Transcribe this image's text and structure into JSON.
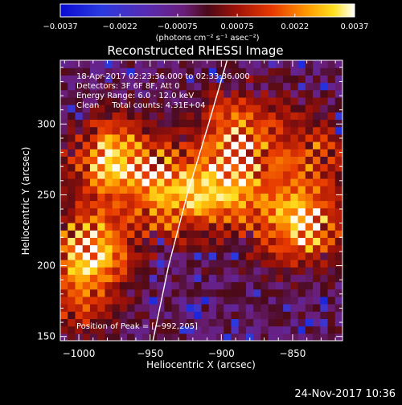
{
  "chart_data": {
    "type": "heatmap",
    "title": "Reconstructed RHESSI Image",
    "xlabel": "Heliocentric X (arcsec)",
    "ylabel": "Heliocentric Y (arcsec)",
    "xlim": [
      -1013,
      -815
    ],
    "ylim": [
      147,
      345
    ],
    "xticks": [
      -1000,
      -950,
      -900,
      -850
    ],
    "xtick_labels": [
      "−1000",
      "−950",
      "−900",
      "−850"
    ],
    "yticks": [
      150,
      200,
      250,
      300
    ],
    "ytick_labels": [
      "150",
      "200",
      "250",
      "300"
    ],
    "colorbar": {
      "min": -0.0037,
      "max": 0.0037,
      "ticks": [
        -0.0037,
        -0.0022,
        -0.00075,
        0.00075,
        0.0022,
        0.0037
      ],
      "tick_labels": [
        "−0.0037",
        "−0.0022",
        "−0.00075",
        "0.00075",
        "0.0022",
        "0.0037"
      ],
      "units_label": "(photons cm⁻² s⁻¹ asec⁻²)",
      "colormap": "blue-purple-red-yellow-white"
    },
    "annotations": [
      "18-Apr-2017 02:23:36.000 to 02:33:36.000",
      "Detectors: 3F 6F 8F, Att 0",
      "Energy Range: 6.0 - 12.0 keV",
      "Clean     Total counts: 4.31E+04"
    ],
    "peak_label": "Position of Peak = [−992,205]",
    "peak_position": [
      -992,
      205
    ],
    "bright_regions": [
      {
        "x": -975,
        "y": 275,
        "intensity": 0.95
      },
      {
        "x": -992,
        "y": 210,
        "intensity": 1.0
      },
      {
        "x": -935,
        "y": 250,
        "intensity": 0.8
      },
      {
        "x": -895,
        "y": 255,
        "intensity": 0.75
      },
      {
        "x": -890,
        "y": 295,
        "intensity": 0.65
      },
      {
        "x": -845,
        "y": 230,
        "intensity": 0.95
      },
      {
        "x": -840,
        "y": 280,
        "intensity": 0.5
      },
      {
        "x": -1005,
        "y": 170,
        "intensity": 0.35
      }
    ],
    "limb_curve": [
      [
        -948,
        147
      ],
      [
        -937,
        200
      ],
      [
        -924,
        250
      ],
      [
        -909,
        300
      ],
      [
        -896,
        345
      ]
    ],
    "grid": false,
    "colors": {
      "background": "#000000",
      "axes": "#ffffff",
      "limb_line": "#ffffff"
    }
  },
  "footer": {
    "date_stamp": "24-Nov-2017 10:36"
  }
}
